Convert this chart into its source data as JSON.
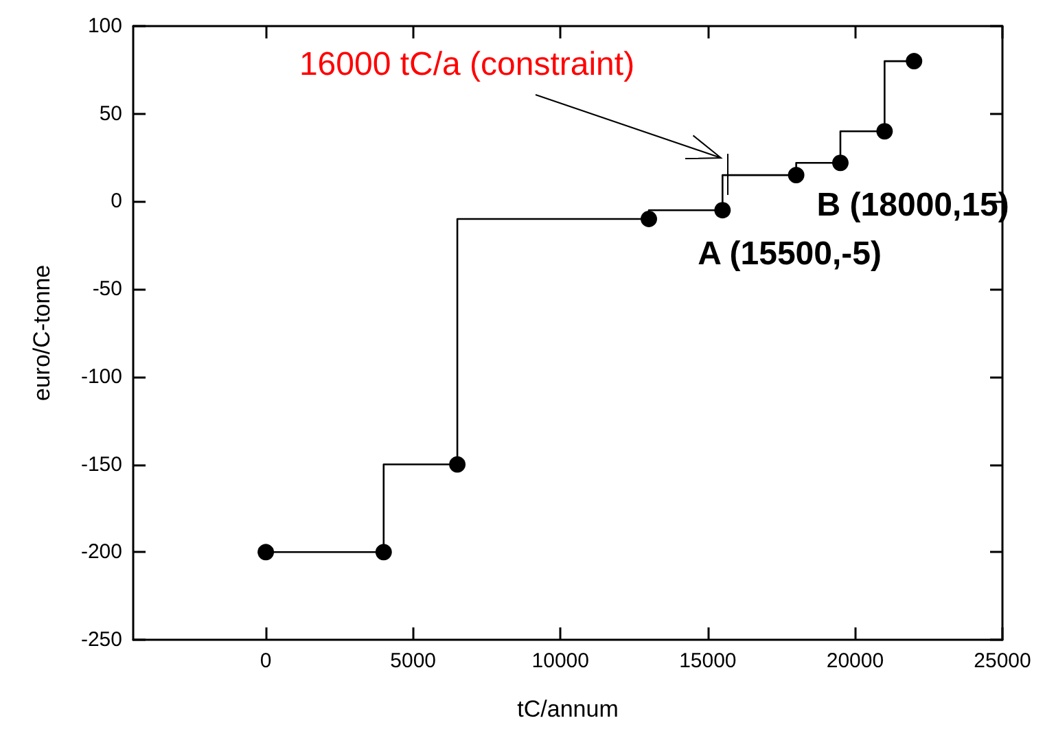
{
  "chart_data": {
    "type": "step",
    "xlabel": "tC/annum",
    "ylabel": "euro/C-tonne",
    "x": [
      0,
      4000,
      6500,
      13000,
      15500,
      18000,
      19500,
      21000,
      22000
    ],
    "values": [
      -200,
      -200,
      -150,
      -10,
      -5,
      15,
      22,
      40,
      80
    ],
    "color": "#000000",
    "marker": "circle",
    "line_style": "solid",
    "grid": false,
    "xlim": [
      -4500,
      25000
    ],
    "xticks": [
      0,
      5000,
      10000,
      15000,
      20000,
      25000
    ],
    "ylim": [
      -250,
      100
    ],
    "yticks": [
      -250,
      -200,
      -150,
      -100,
      -50,
      0,
      50,
      100
    ],
    "annotations": [
      "16000 tC/a (constraint)",
      {
        "text": "A (15500,-5)",
        "x": 15500,
        "y": -5
      },
      {
        "text": "B (18000,15)",
        "x": 18000,
        "y": 15
      }
    ]
  }
}
